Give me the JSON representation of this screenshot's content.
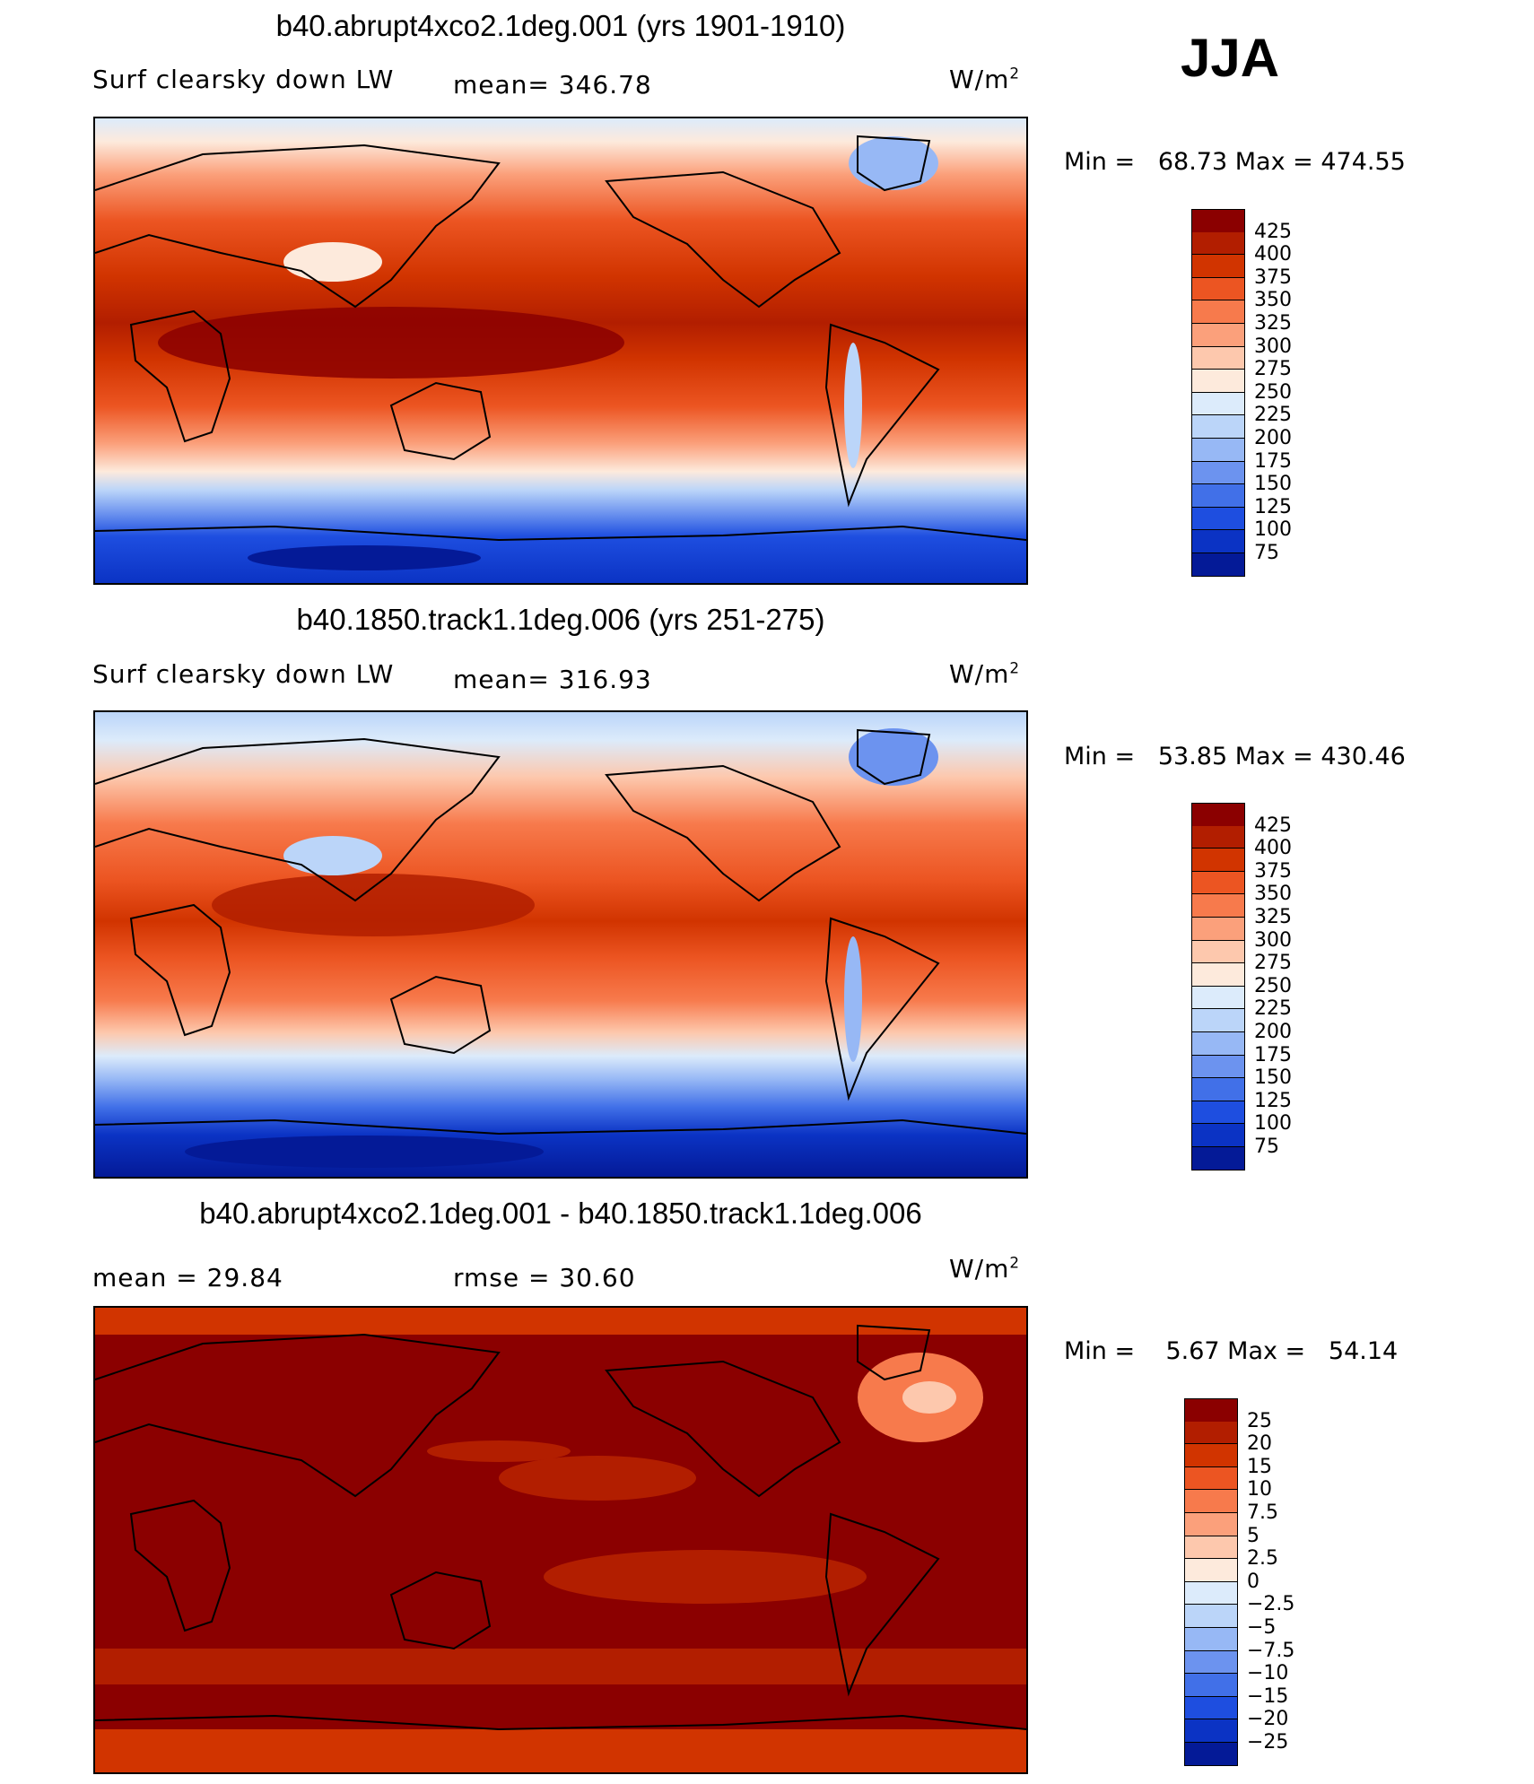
{
  "season": "JJA",
  "panels": [
    {
      "title": "b40.abrupt4xco2.1deg.001 (yrs 1901-1910)",
      "left_text": "Surf clearsky down LW",
      "mid_text": "mean= 346.78",
      "units_base": "W/m",
      "units_exp": "2",
      "stats": "Min =   68.73 Max = 474.55",
      "legend": [
        "425",
        "400",
        "375",
        "350",
        "325",
        "300",
        "275",
        "250",
        "225",
        "200",
        "175",
        "150",
        "125",
        "100",
        "75"
      ]
    },
    {
      "title": "b40.1850.track1.1deg.006 (yrs 251-275)",
      "left_text": "Surf clearsky down LW",
      "mid_text": "mean= 316.93",
      "units_base": "W/m",
      "units_exp": "2",
      "stats": "Min =   53.85 Max = 430.46",
      "legend": [
        "425",
        "400",
        "375",
        "350",
        "325",
        "300",
        "275",
        "250",
        "225",
        "200",
        "175",
        "150",
        "125",
        "100",
        "75"
      ]
    },
    {
      "title": "b40.abrupt4xco2.1deg.001 - b40.1850.track1.1deg.006",
      "left_text": "mean =   29.84",
      "mid_text": "rmse =   30.60",
      "units_base": "W/m",
      "units_exp": "2",
      "stats": "Min =    5.67 Max =   54.14",
      "legend": [
        "25",
        "20",
        "15",
        "10",
        "7.5",
        "5",
        "2.5",
        "0",
        "−2.5",
        "−5",
        "−7.5",
        "−10",
        "−15",
        "−20",
        "−25"
      ]
    }
  ],
  "colors": [
    "#8b0000",
    "#b21e00",
    "#d13400",
    "#ec5522",
    "#f77a4c",
    "#fba07b",
    "#fdc8ad",
    "#fdeadc",
    "#dcebfb",
    "#bbd5f9",
    "#97b8f5",
    "#6c93ef",
    "#4170e8",
    "#1e4ee0",
    "#0b33c4",
    "#041a97"
  ]
}
